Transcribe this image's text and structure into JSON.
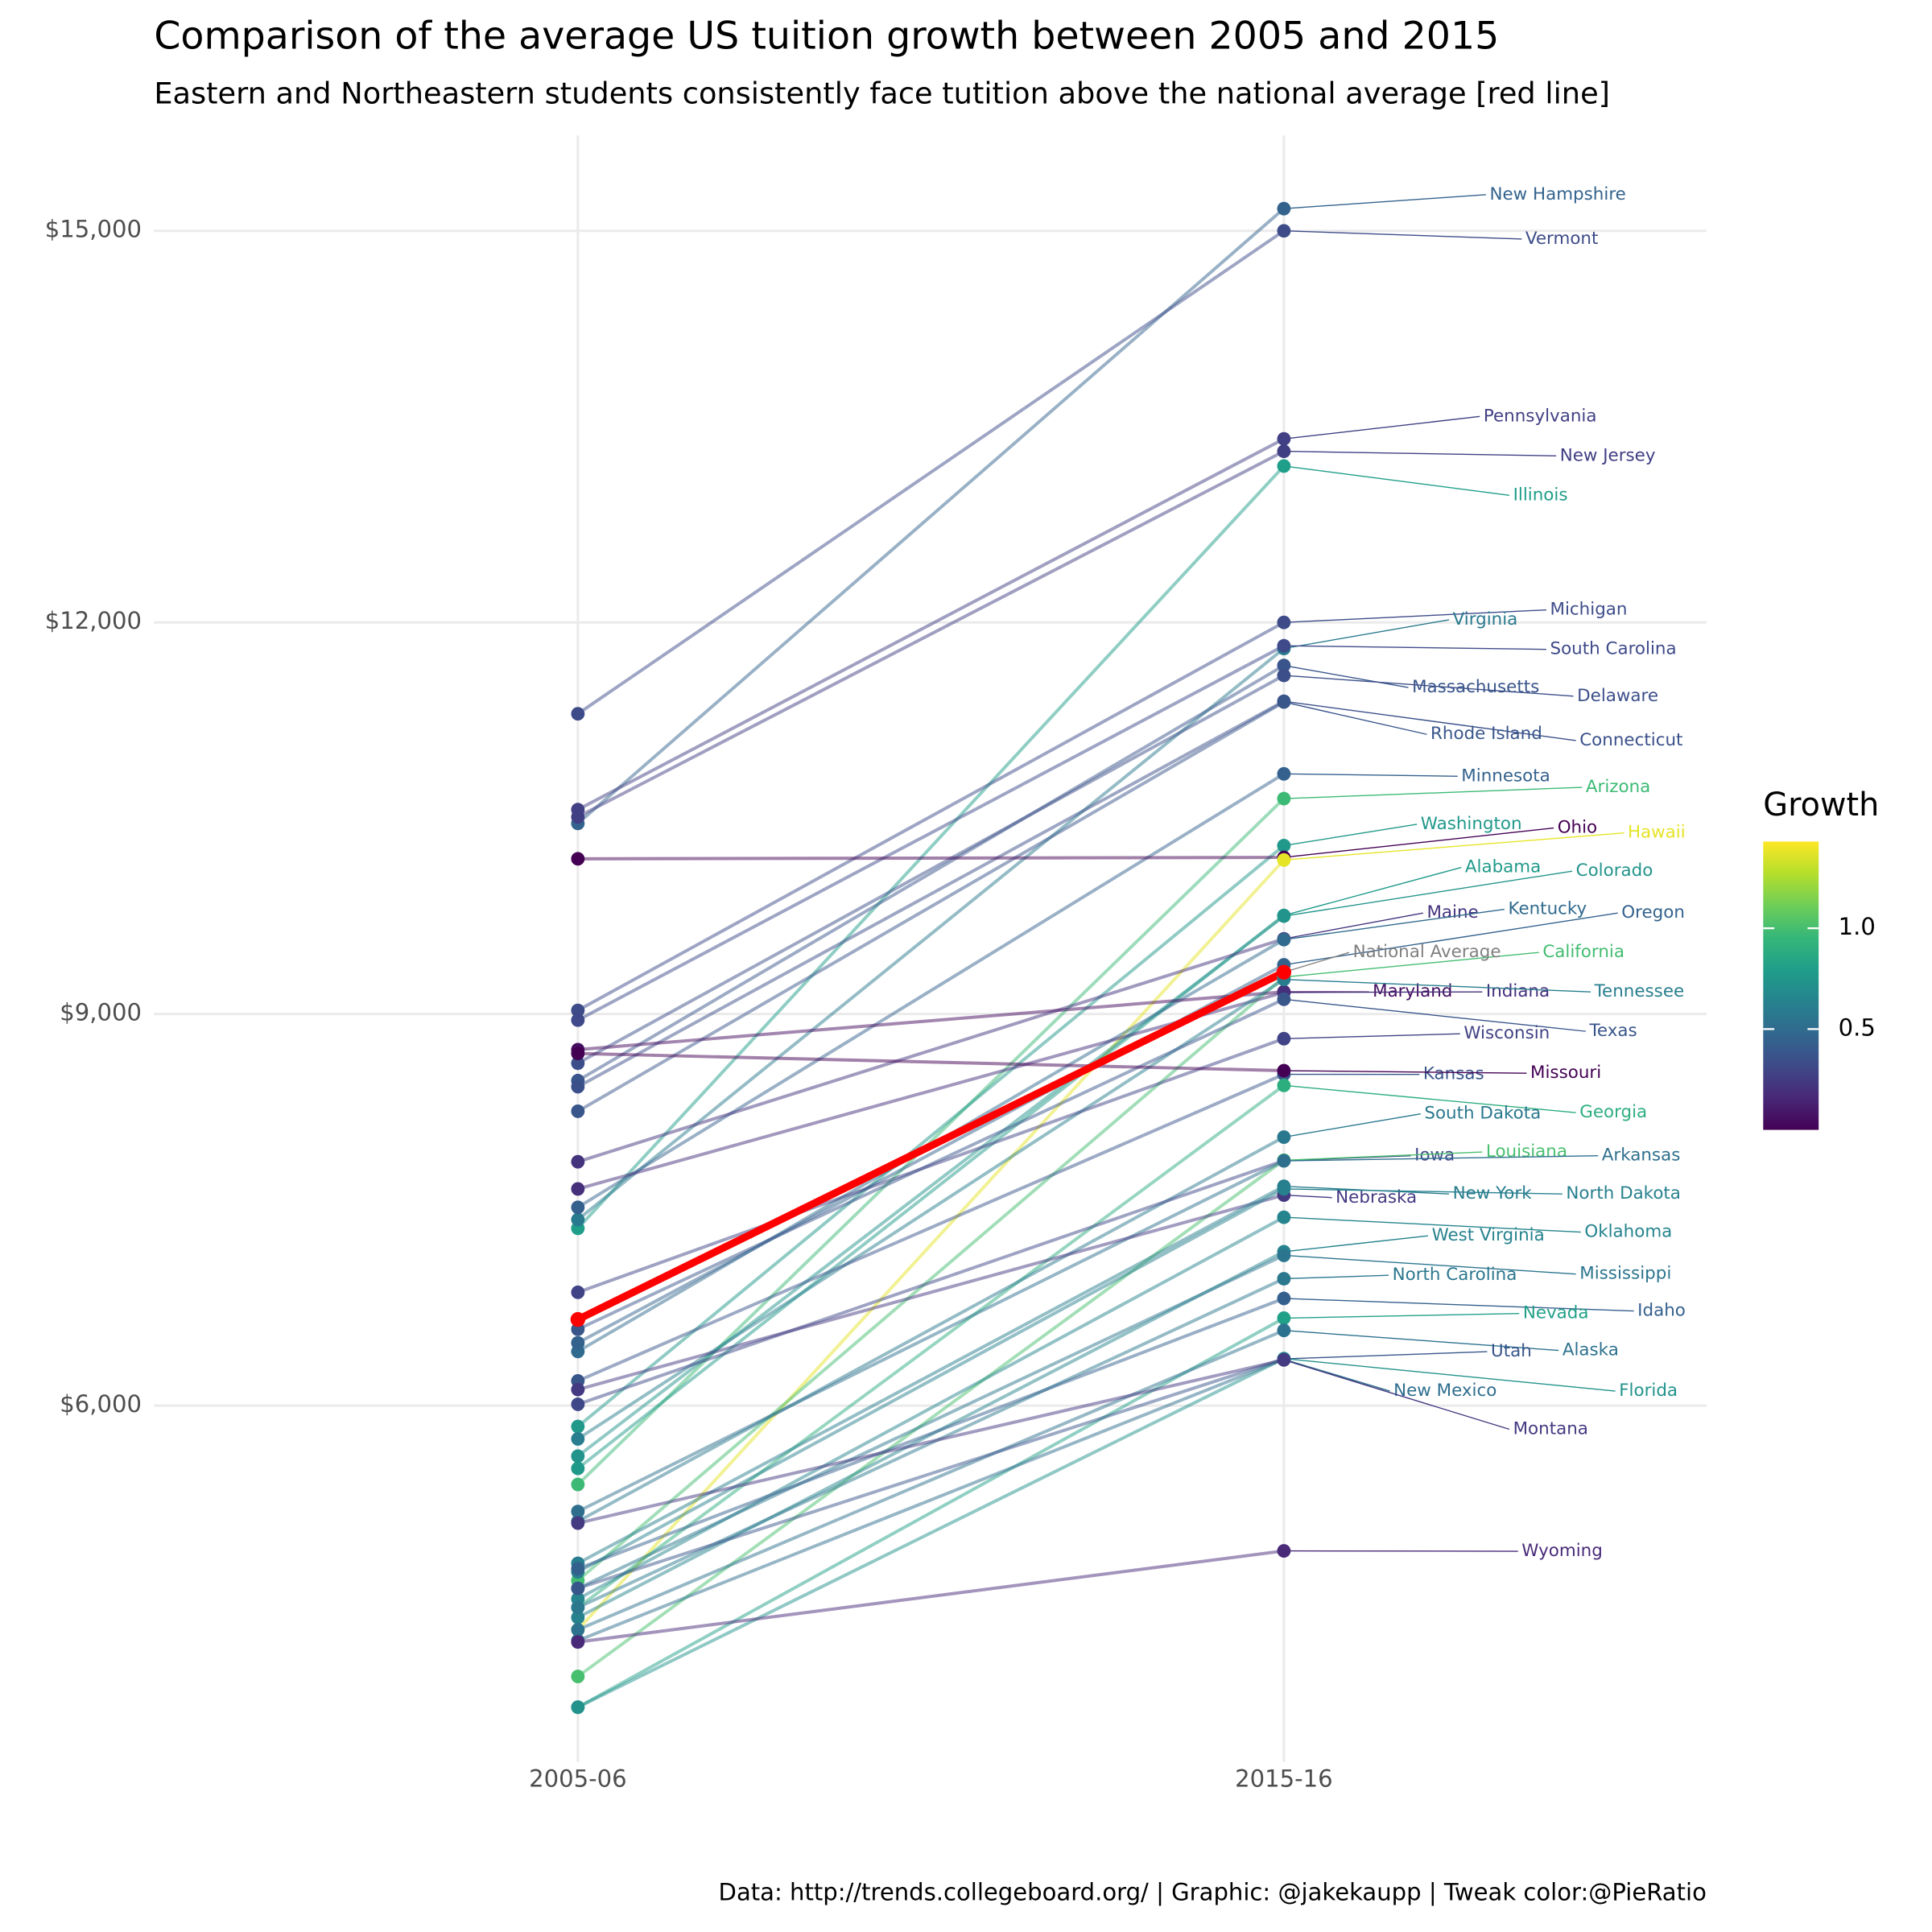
{
  "chart_data": {
    "type": "slope",
    "title": "Comparison of the average US tuition growth between 2005 and 2015",
    "subtitle": "Eastern and Northeastern students consistently face tutition above the national average [red line]",
    "caption": "Data: http://trends.collegeboard.org/ | Graphic: @jakekaupp | Tweak color:@PieRatio",
    "categories": [
      "2005-06",
      "2015-16"
    ],
    "ylim": [
      3270,
      15730
    ],
    "yticks": [
      {
        "value": 6000,
        "label": "$6,000"
      },
      {
        "value": 9000,
        "label": "$9,000"
      },
      {
        "value": 12000,
        "label": "$12,000"
      },
      {
        "value": 15000,
        "label": "$15,000"
      }
    ],
    "grid": true,
    "colorbar": {
      "title": "Growth",
      "colorlim": [
        0,
        1.43
      ],
      "ticks": [
        0.5,
        {
          "value": 1,
          "label": "1.0"
        }
      ],
      "colormap": "viridis"
    },
    "highlight": "National Average",
    "series": [
      {
        "name": "New Hampshire",
        "values": [
          10460,
          15170
        ]
      },
      {
        "name": "Vermont",
        "values": [
          11300,
          15000
        ]
      },
      {
        "name": "Pennsylvania",
        "values": [
          10566,
          13406
        ]
      },
      {
        "name": "New Jersey",
        "values": [
          10510,
          13311
        ]
      },
      {
        "name": "Illinois",
        "values": [
          7358,
          13198
        ]
      },
      {
        "name": "Michigan",
        "values": [
          9028,
          12000
        ]
      },
      {
        "name": "Virginia",
        "values": [
          7425,
          11800
        ]
      },
      {
        "name": "South Carolina",
        "values": [
          8953,
          11821
        ]
      },
      {
        "name": "Massachusetts",
        "values": [
          8490,
          11670
        ]
      },
      {
        "name": "Delaware",
        "values": [
          8623,
          11594
        ]
      },
      {
        "name": "Connecticut",
        "values": [
          8443,
          11396
        ]
      },
      {
        "name": "Rhode Island",
        "values": [
          8255,
          11390
        ]
      },
      {
        "name": "Minnesota",
        "values": [
          7519,
          10840
        ]
      },
      {
        "name": "Arizona",
        "values": [
          5396,
          10650
        ]
      },
      {
        "name": "Washington",
        "values": [
          5840,
          10290
        ]
      },
      {
        "name": "Ohio",
        "values": [
          10189,
          10200
        ]
      },
      {
        "name": "Hawaii",
        "values": [
          4283,
          10180
        ]
      },
      {
        "name": "Alabama",
        "values": [
          5519,
          9755
        ]
      },
      {
        "name": "Colorado",
        "values": [
          5613,
          9750
        ]
      },
      {
        "name": "Maine",
        "values": [
          7868,
          9576
        ]
      },
      {
        "name": "Kentucky",
        "values": [
          6415,
          9570
        ]
      },
      {
        "name": "Oregon",
        "values": [
          6481,
          9377
        ]
      },
      {
        "name": "California",
        "values": [
          4660,
          9283
        ]
      },
      {
        "name": "Maryland",
        "values": [
          8727,
          9170
        ]
      },
      {
        "name": "Indiana",
        "values": [
          7660,
          9165
        ]
      },
      {
        "name": "Tennessee",
        "values": [
          5745,
          9265
        ]
      },
      {
        "name": "Texas",
        "values": [
          6585,
          9113
        ]
      },
      {
        "name": "Wisconsin",
        "values": [
          6868,
          8811
        ]
      },
      {
        "name": "Kansas",
        "values": [
          6189,
          8538
        ]
      },
      {
        "name": "Missouri",
        "values": [
          8698,
          8566
        ]
      },
      {
        "name": "Georgia",
        "values": [
          4453,
          8453
        ]
      },
      {
        "name": "South Dakota",
        "values": [
          5113,
          8057
        ]
      },
      {
        "name": "Iowa",
        "values": [
          6010,
          7877
        ]
      },
      {
        "name": "Louisiana",
        "values": [
          3925,
          7880
        ]
      },
      {
        "name": "Arkansas",
        "values": [
          5189,
          7875
        ]
      },
      {
        "name": "Nebraska",
        "values": [
          6123,
          7613
        ]
      },
      {
        "name": "New York",
        "values": [
          4792,
          7680
        ]
      },
      {
        "name": "North Dakota",
        "values": [
          4726,
          7660
        ]
      },
      {
        "name": "Oklahoma",
        "values": [
          4519,
          7443
        ]
      },
      {
        "name": "West Virginia",
        "values": [
          4377,
          7179
        ]
      },
      {
        "name": "Mississippi",
        "values": [
          4600,
          7151
        ]
      },
      {
        "name": "North Carolina",
        "values": [
          4453,
          6972
        ]
      },
      {
        "name": "Idaho",
        "values": [
          4750,
          6821
        ]
      },
      {
        "name": "Nevada",
        "values": [
          3689,
          6670
        ]
      },
      {
        "name": "Alaska",
        "values": [
          4283,
          6576
        ]
      },
      {
        "name": "Utah",
        "values": [
          4600,
          6358
        ]
      },
      {
        "name": "Florida",
        "values": [
          3690,
          6360
        ]
      },
      {
        "name": "New Mexico",
        "values": [
          4200,
          6355
        ]
      },
      {
        "name": "Montana",
        "values": [
          5100,
          6350
        ]
      },
      {
        "name": "Wyoming",
        "values": [
          4189,
          4887
        ]
      },
      {
        "name": "National Average",
        "color": "red",
        "values": [
          6660,
          9320
        ]
      }
    ]
  }
}
